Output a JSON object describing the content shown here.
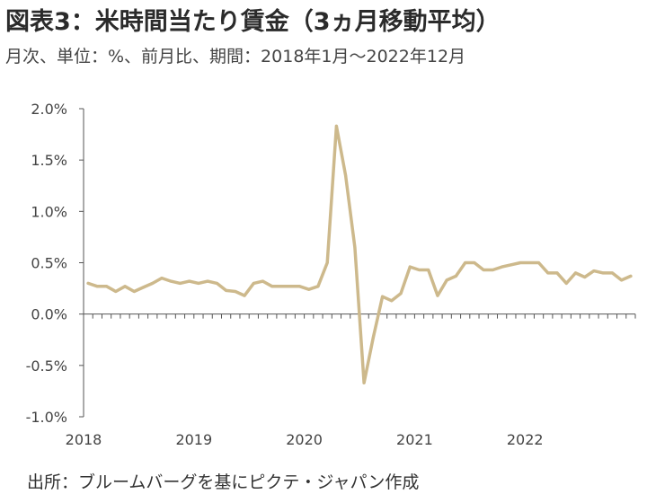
{
  "title": "図表3：米時間当たり賃金（3ヵ月移動平均）",
  "subtitle": "月次、単位：%、前月比、期間：2018年1月～2022年12月",
  "source": "出所：ブルームバーグを基にピクテ・ジャパン作成",
  "colors": {
    "line": "#cdb98c",
    "axis": "#555555"
  },
  "chart_data": {
    "type": "line",
    "title": "図表3：米時間当たり賃金（3ヵ月移動平均）",
    "ylim": [
      -1.0,
      2.0
    ],
    "y_ticks": [
      "2.0%",
      "1.5%",
      "1.0%",
      "0.5%",
      "0.0%",
      "-0.5%",
      "-1.0%"
    ],
    "y_tick_values": [
      2.0,
      1.5,
      1.0,
      0.5,
      0.0,
      -0.5,
      -1.0
    ],
    "x_ticks": [
      "2018",
      "2019",
      "2020",
      "2021",
      "2022"
    ],
    "grid": false,
    "x": [
      "2018-01",
      "2018-02",
      "2018-03",
      "2018-04",
      "2018-05",
      "2018-06",
      "2018-07",
      "2018-08",
      "2018-09",
      "2018-10",
      "2018-11",
      "2018-12",
      "2019-01",
      "2019-02",
      "2019-03",
      "2019-04",
      "2019-05",
      "2019-06",
      "2019-07",
      "2019-08",
      "2019-09",
      "2019-10",
      "2019-11",
      "2019-12",
      "2020-01",
      "2020-02",
      "2020-03",
      "2020-04",
      "2020-05",
      "2020-06",
      "2020-07",
      "2020-08",
      "2020-09",
      "2020-10",
      "2020-11",
      "2020-12",
      "2021-01",
      "2021-02",
      "2021-03",
      "2021-04",
      "2021-05",
      "2021-06",
      "2021-07",
      "2021-08",
      "2021-09",
      "2021-10",
      "2021-11",
      "2021-12",
      "2022-01",
      "2022-02",
      "2022-03",
      "2022-04",
      "2022-05",
      "2022-06",
      "2022-07",
      "2022-08",
      "2022-09",
      "2022-10",
      "2022-11",
      "2022-12"
    ],
    "series": [
      {
        "values": [
          0.3,
          0.27,
          0.27,
          0.22,
          0.27,
          0.22,
          0.26,
          0.3,
          0.35,
          0.32,
          0.3,
          0.32,
          0.3,
          0.32,
          0.3,
          0.23,
          0.22,
          0.18,
          0.3,
          0.32,
          0.27,
          0.27,
          0.27,
          0.27,
          0.24,
          0.27,
          0.5,
          1.83,
          1.35,
          0.65,
          -0.67,
          -0.23,
          0.17,
          0.13,
          0.2,
          0.46,
          0.43,
          0.43,
          0.18,
          0.33,
          0.37,
          0.5,
          0.5,
          0.43,
          0.43,
          0.46,
          0.48,
          0.5,
          0.5,
          0.5,
          0.4,
          0.4,
          0.3,
          0.4,
          0.36,
          0.42,
          0.4,
          0.4,
          0.33,
          0.37
        ]
      }
    ]
  }
}
